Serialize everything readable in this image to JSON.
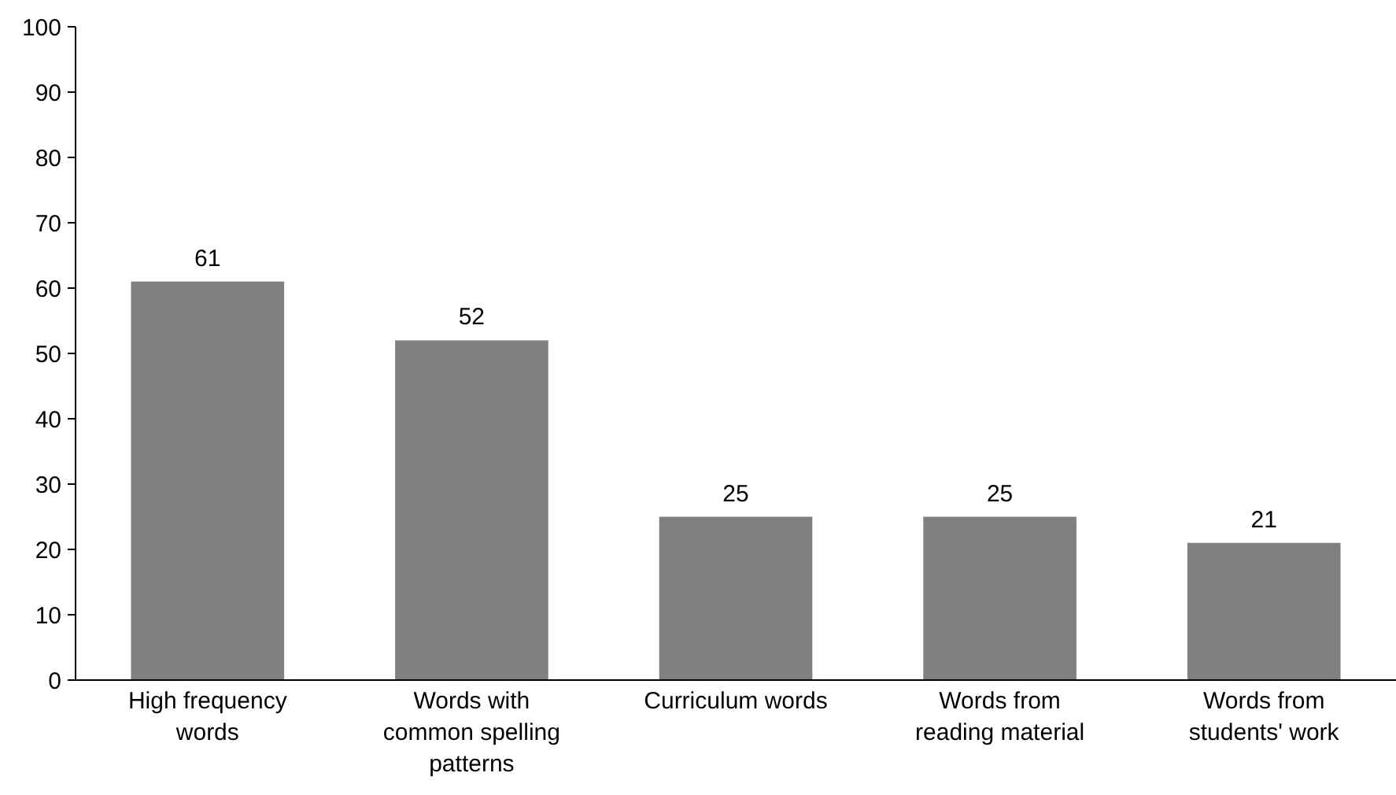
{
  "chart_data": {
    "type": "bar",
    "categories": [
      "High frequency words",
      "Words with common spelling patterns",
      "Curriculum words",
      "Words from reading material",
      "Words from students' work"
    ],
    "values": [
      61,
      52,
      25,
      25,
      21
    ],
    "color": "#808080",
    "ylim": [
      0,
      100
    ],
    "yticks": [
      0,
      10,
      20,
      30,
      40,
      50,
      60,
      70,
      80,
      90,
      100
    ],
    "data_labels": true
  }
}
